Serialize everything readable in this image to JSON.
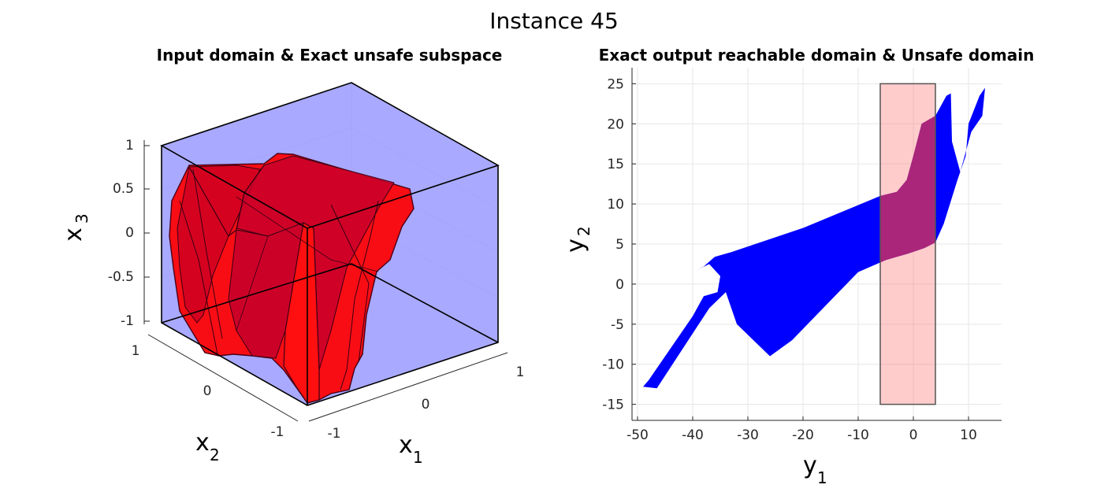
{
  "figure_title": "Instance 45",
  "colors": {
    "input_domain": "#8c8cff",
    "unsafe_subspace": "#ff0000",
    "reachable_domain": "#0000ff",
    "unsafe_domain": "#ff6e6e",
    "overlap": "#7d0082"
  },
  "chart_data": [
    {
      "type": "3d-polytope",
      "title": "Input domain & Exact unsafe subspace",
      "xlabel": {
        "base": "x",
        "sub": "1"
      },
      "ylabel": {
        "base": "x",
        "sub": "2"
      },
      "zlabel": {
        "base": "x",
        "sub": "3"
      },
      "xlim": [
        -1,
        1
      ],
      "ylim": [
        -1,
        1
      ],
      "zlim": [
        -1,
        1
      ],
      "xticks": [
        "-1",
        "0",
        "1"
      ],
      "yticks": [
        "-1",
        "0",
        "1"
      ],
      "zticks": [
        "-1",
        "-0.5",
        "0",
        "0.5",
        "1"
      ],
      "grid": true,
      "series": [
        {
          "role": "input domain box",
          "color": "#8c8cff"
        },
        {
          "role": "exact unsafe subspace",
          "color": "#ff0000"
        }
      ]
    },
    {
      "type": "area",
      "title": "Exact output reachable domain & Unsafe domain",
      "xlabel": {
        "base": "y",
        "sub": "1"
      },
      "ylabel": {
        "base": "y",
        "sub": "2"
      },
      "xlim": [
        -51,
        16
      ],
      "ylim": [
        -17,
        27
      ],
      "xticks": [
        -50,
        -40,
        -30,
        -20,
        -10,
        0,
        10
      ],
      "yticks": [
        -15,
        -10,
        -5,
        0,
        5,
        10,
        15,
        20,
        25
      ],
      "grid": true,
      "reachable_polygon": [
        [
          -49,
          -12.8
        ],
        [
          -46.5,
          -13
        ],
        [
          -37,
          -3
        ],
        [
          -34,
          -1
        ],
        [
          -32,
          -5
        ],
        [
          -26,
          -9
        ],
        [
          -22,
          -7
        ],
        [
          -10,
          1.5
        ],
        [
          -5,
          3
        ],
        [
          -1,
          3.8
        ],
        [
          2,
          4.5
        ],
        [
          4,
          5.2
        ],
        [
          5.5,
          7.5
        ],
        [
          8,
          13
        ],
        [
          9.5,
          16
        ],
        [
          10,
          20
        ],
        [
          12,
          23.5
        ],
        [
          13,
          24.5
        ],
        [
          12.5,
          21
        ],
        [
          10.5,
          19
        ],
        [
          8.5,
          14
        ],
        [
          7,
          17.8
        ],
        [
          6.8,
          23.8
        ],
        [
          6,
          23.5
        ],
        [
          4,
          21
        ],
        [
          1.5,
          20
        ],
        [
          0,
          16
        ],
        [
          -1.2,
          13
        ],
        [
          -3,
          11.5
        ],
        [
          -6,
          11
        ],
        [
          -20,
          7
        ],
        [
          -33,
          4
        ],
        [
          -36,
          3.4
        ],
        [
          -38,
          2.2
        ],
        [
          -39.5,
          1.7
        ],
        [
          -37,
          2.5
        ],
        [
          -35,
          1
        ],
        [
          -35.5,
          -1
        ],
        [
          -38,
          -1.5
        ],
        [
          -40,
          -4
        ],
        [
          -44,
          -8
        ],
        [
          -48,
          -12
        ]
      ],
      "unsafe_rect": {
        "x": [
          -6,
          4
        ],
        "y": [
          -15,
          25
        ]
      }
    }
  ]
}
